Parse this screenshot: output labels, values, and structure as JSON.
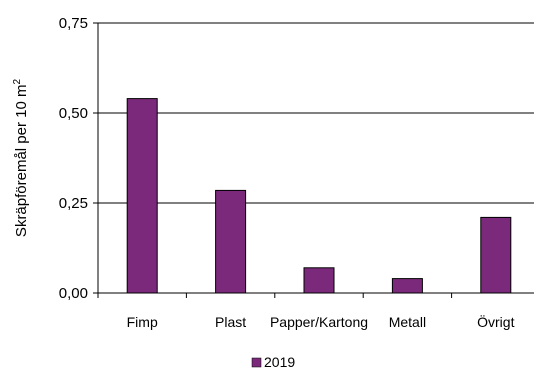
{
  "chart_data": {
    "type": "bar",
    "title": "",
    "xlabel": "",
    "ylabel": "Skräpföremål per 10 m",
    "ylabel_superscript": "2",
    "categories": [
      "Fimp",
      "Plast",
      "Papper/Kartong",
      "Metall",
      "Övrigt"
    ],
    "series": [
      {
        "name": "2019",
        "values": [
          0.54,
          0.285,
          0.07,
          0.04,
          0.21
        ],
        "color": "#7b2a7b"
      }
    ],
    "ylim": [
      0,
      0.75
    ],
    "yticks": [
      {
        "value": 0,
        "label": "0,00"
      },
      {
        "value": 0.25,
        "label": "0,25"
      },
      {
        "value": 0.5,
        "label": "0,50"
      },
      {
        "value": 0.75,
        "label": "0,75"
      }
    ],
    "grid": true,
    "legend": "bottom"
  }
}
